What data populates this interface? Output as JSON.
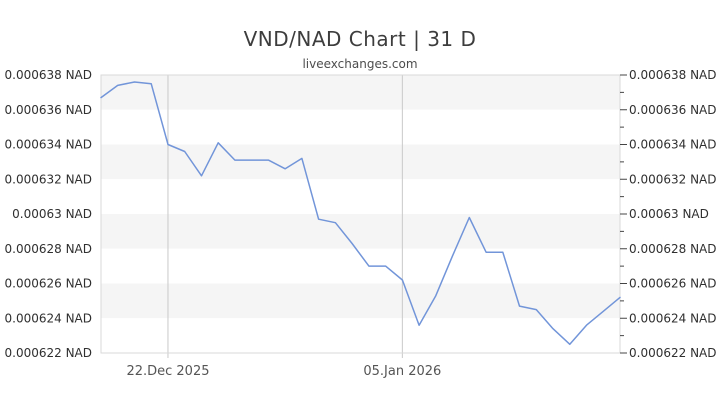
{
  "chart_data": {
    "type": "line",
    "title": "VND/NAD Chart | 31 D",
    "subtitle": "liveexchanges.com",
    "unit": "NAD",
    "ylim": [
      0.000622,
      0.000638
    ],
    "y_step": 2e-06,
    "legend": "none",
    "grid": "horizontal alternating bands, vertical gridlines at labeled dates",
    "y_tick_labels": [
      "0.000638 NAD",
      "0.000636 NAD",
      "0.000634 NAD",
      "0.000632 NAD",
      "0.00063 NAD",
      "0.000628 NAD",
      "0.000626 NAD",
      "0.000624 NAD",
      "0.000622 NAD"
    ],
    "x_tick_labels": [
      {
        "index": 4,
        "label": "22.Dec 2025"
      },
      {
        "index": 18,
        "label": "05.Jan 2026"
      }
    ],
    "series": [
      {
        "name": "VND/NAD",
        "values": [
          0.0006367,
          0.0006374,
          0.0006376,
          0.0006375,
          0.000634,
          0.0006336,
          0.0006322,
          0.0006341,
          0.0006331,
          0.0006331,
          0.0006331,
          0.0006326,
          0.0006332,
          0.0006297,
          0.0006295,
          0.0006283,
          0.000627,
          0.000627,
          0.0006262,
          0.0006236,
          0.0006253,
          0.0006276,
          0.0006298,
          0.0006278,
          0.0006278,
          0.0006247,
          0.0006245,
          0.0006234,
          0.0006225,
          0.0006236,
          0.0006244,
          0.0006252
        ]
      }
    ],
    "colors": {
      "line": "#7295d9",
      "band": "#f5f5f5",
      "border": "#d9d9d9",
      "gridline": "#c9c9c9",
      "tick": "#444444",
      "title": "#3d3d3d",
      "subtitle": "#4d4d4d",
      "y_label": "#2f2f2f",
      "x_label": "#555555"
    }
  }
}
